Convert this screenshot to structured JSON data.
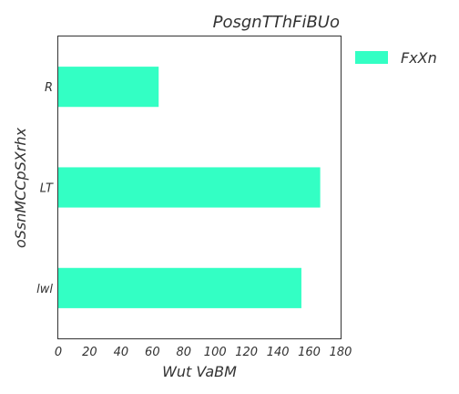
{
  "chart_data": {
    "type": "bar",
    "orientation": "horizontal",
    "title": "PosgnTThFiBUo",
    "xlabel": "Wut VaBM",
    "ylabel": "oSsnMCCpSXrhx",
    "categories": [
      "R",
      "LT",
      "lwl"
    ],
    "series": [
      {
        "name": "FxXn",
        "values": [
          64,
          167,
          155
        ],
        "color": "#33ffc4"
      }
    ],
    "xlim": [
      0,
      180
    ],
    "xticks": [
      0,
      20,
      40,
      60,
      80,
      100,
      120,
      140,
      160,
      180
    ],
    "grid": false,
    "legend_position": "outside-right-top"
  }
}
